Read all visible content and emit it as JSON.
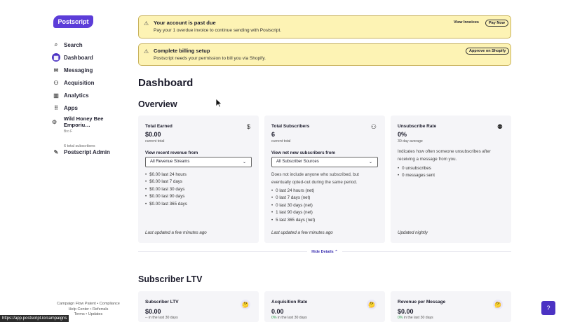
{
  "sidebar": {
    "logo": "Postscript",
    "items": [
      {
        "label": "Search",
        "icon": "⌕"
      },
      {
        "label": "Dashboard",
        "icon": "▦"
      },
      {
        "label": "Messaging",
        "icon": "✉"
      },
      {
        "label": "Acquisition",
        "icon": "⚇"
      },
      {
        "label": "Analytics",
        "icon": "▥"
      },
      {
        "label": "Apps",
        "icon": "⠿"
      }
    ],
    "shop": {
      "name": "Wild Honey Bee Emporiu…",
      "sub": "Bro F",
      "subscribers": "6 total subscribers"
    },
    "admin": {
      "label": "Postscript Admin",
      "icon": "✎"
    },
    "footer": {
      "link1": "Campaign Flow Patent",
      "link2": "Compliance",
      "link3": "Help Center",
      "link4": "Referrals",
      "link5": "Terms",
      "link6": "Updates",
      "sep": "•"
    }
  },
  "statusbar_url": "https://app.postscript.io/campaigns",
  "banners": [
    {
      "title": "Your account is past due",
      "text": "Pay your 1 overdue invoice to continue sending with Postscript.",
      "link": "View Invoices",
      "button": "Pay Now"
    },
    {
      "title": "Complete billing setup",
      "text": "Postscript needs your permission to bill you via Shopify.",
      "button": "Approve on Shopify"
    }
  ],
  "page_title": "Dashboard",
  "overview": {
    "title": "Overview",
    "cards": [
      {
        "title": "Total Earned",
        "value": "$0.00",
        "sub": "current total",
        "icon": "$",
        "label": "View recent revenue from",
        "select": "All Revenue Streams",
        "items": [
          "$0.00 last 24 hours",
          "$0.00 last 7 days",
          "$0.00 last 30 days",
          "$0.00 last 90 days",
          "$0.00 last 365 days"
        ],
        "updated": "Last updated a few minutes ago"
      },
      {
        "title": "Total Subscribers",
        "value": "6",
        "sub": "current total",
        "icon": "⚇",
        "label": "View net new subscribers from",
        "select": "All Subscriber Sources",
        "desc": "Does not include anyone who subscribed, but eventually opted-out during the same period.",
        "items": [
          "0 last 24 hours (net)",
          "0 last 7 days (net)",
          "0 last 30 days (net)",
          "1 last 90 days (net)",
          "5 last 365 days (net)"
        ],
        "updated": "Last updated a few minutes ago"
      },
      {
        "title": "Unsubscribe Rate",
        "value": "0%",
        "sub": "30 day average",
        "icon": "⚉",
        "desc": "Indicates how often someone unsubscribes after receiving a message from you.",
        "items": [
          "0 unsubscribes",
          "0 messages sent"
        ],
        "updated": "Updated nightly"
      }
    ],
    "hide_details": "Hide Details ⌃"
  },
  "ltv": {
    "title": "Subscriber LTV",
    "cards": [
      {
        "title": "Subscriber LTV",
        "value": "$0.00",
        "sub_prefix": "--",
        "sub": "in the last 30 days"
      },
      {
        "title": "Acquisition Rate",
        "value": "0.00",
        "sub_prefix": "0%",
        "sub": "in the last 30 days"
      },
      {
        "title": "Revenue per Message",
        "value": "$0.00",
        "sub_prefix": "0%",
        "sub": "in the last 30 days"
      }
    ],
    "emoji": "🤔"
  },
  "help_icon": "?",
  "colors": {
    "brand": "#5c3dd8",
    "banner_bg": "#fdf3b4",
    "banner_border": "#c9b35d",
    "card_bg": "#f5f5f8",
    "link": "#3a2fb0",
    "positive": "#2a9a4a"
  }
}
